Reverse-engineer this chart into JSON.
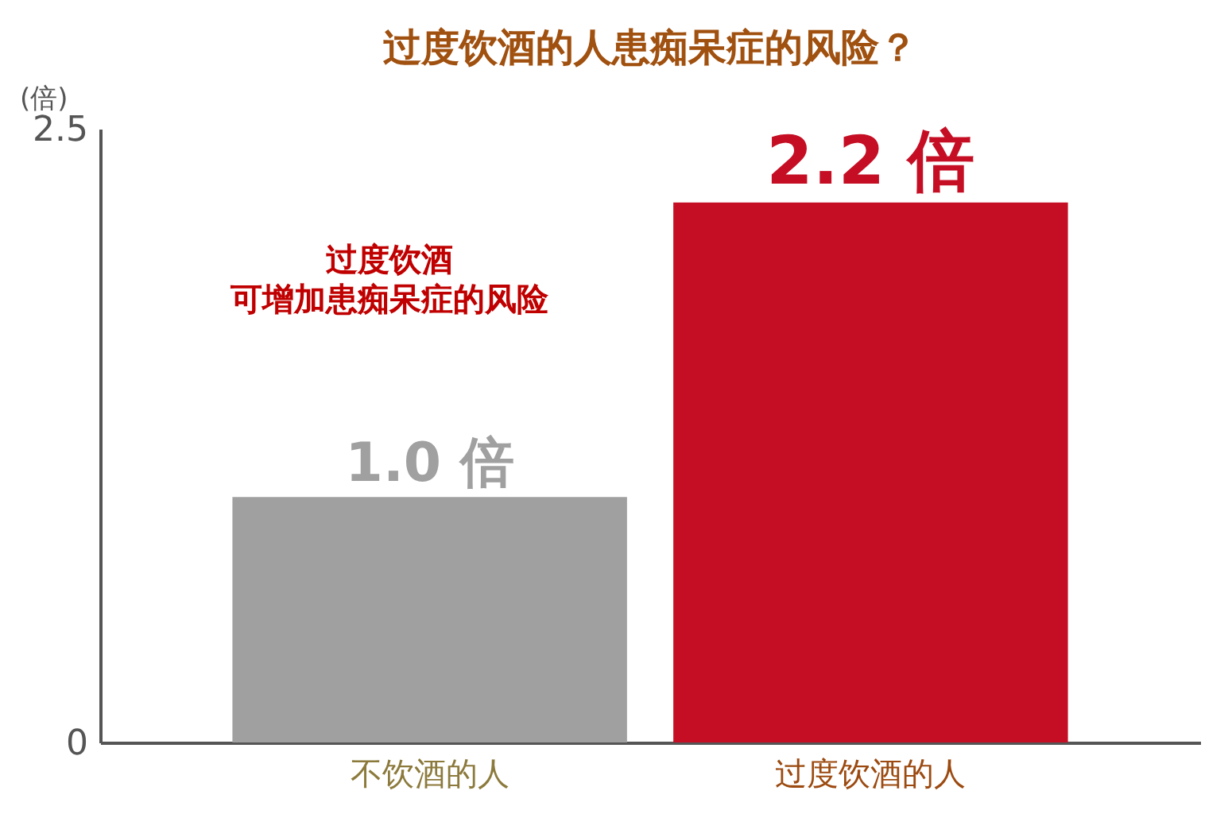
{
  "chart_data": {
    "type": "bar",
    "title": "过度饮酒的人患痴呆症的风险？",
    "ylabel": "(倍)",
    "categories": [
      "不饮酒的人",
      "过度饮酒的人"
    ],
    "values": [
      1.0,
      2.2
    ],
    "colors": [
      "#a0a0a0",
      "#c50e24"
    ],
    "value_labels": [
      "1.0 倍",
      "2.2 倍"
    ],
    "ylim": [
      0,
      2.5
    ],
    "yticks": [
      0,
      2.5
    ],
    "annotations": [
      "过度饮酒",
      "可增加患痴呆症的风险"
    ]
  }
}
